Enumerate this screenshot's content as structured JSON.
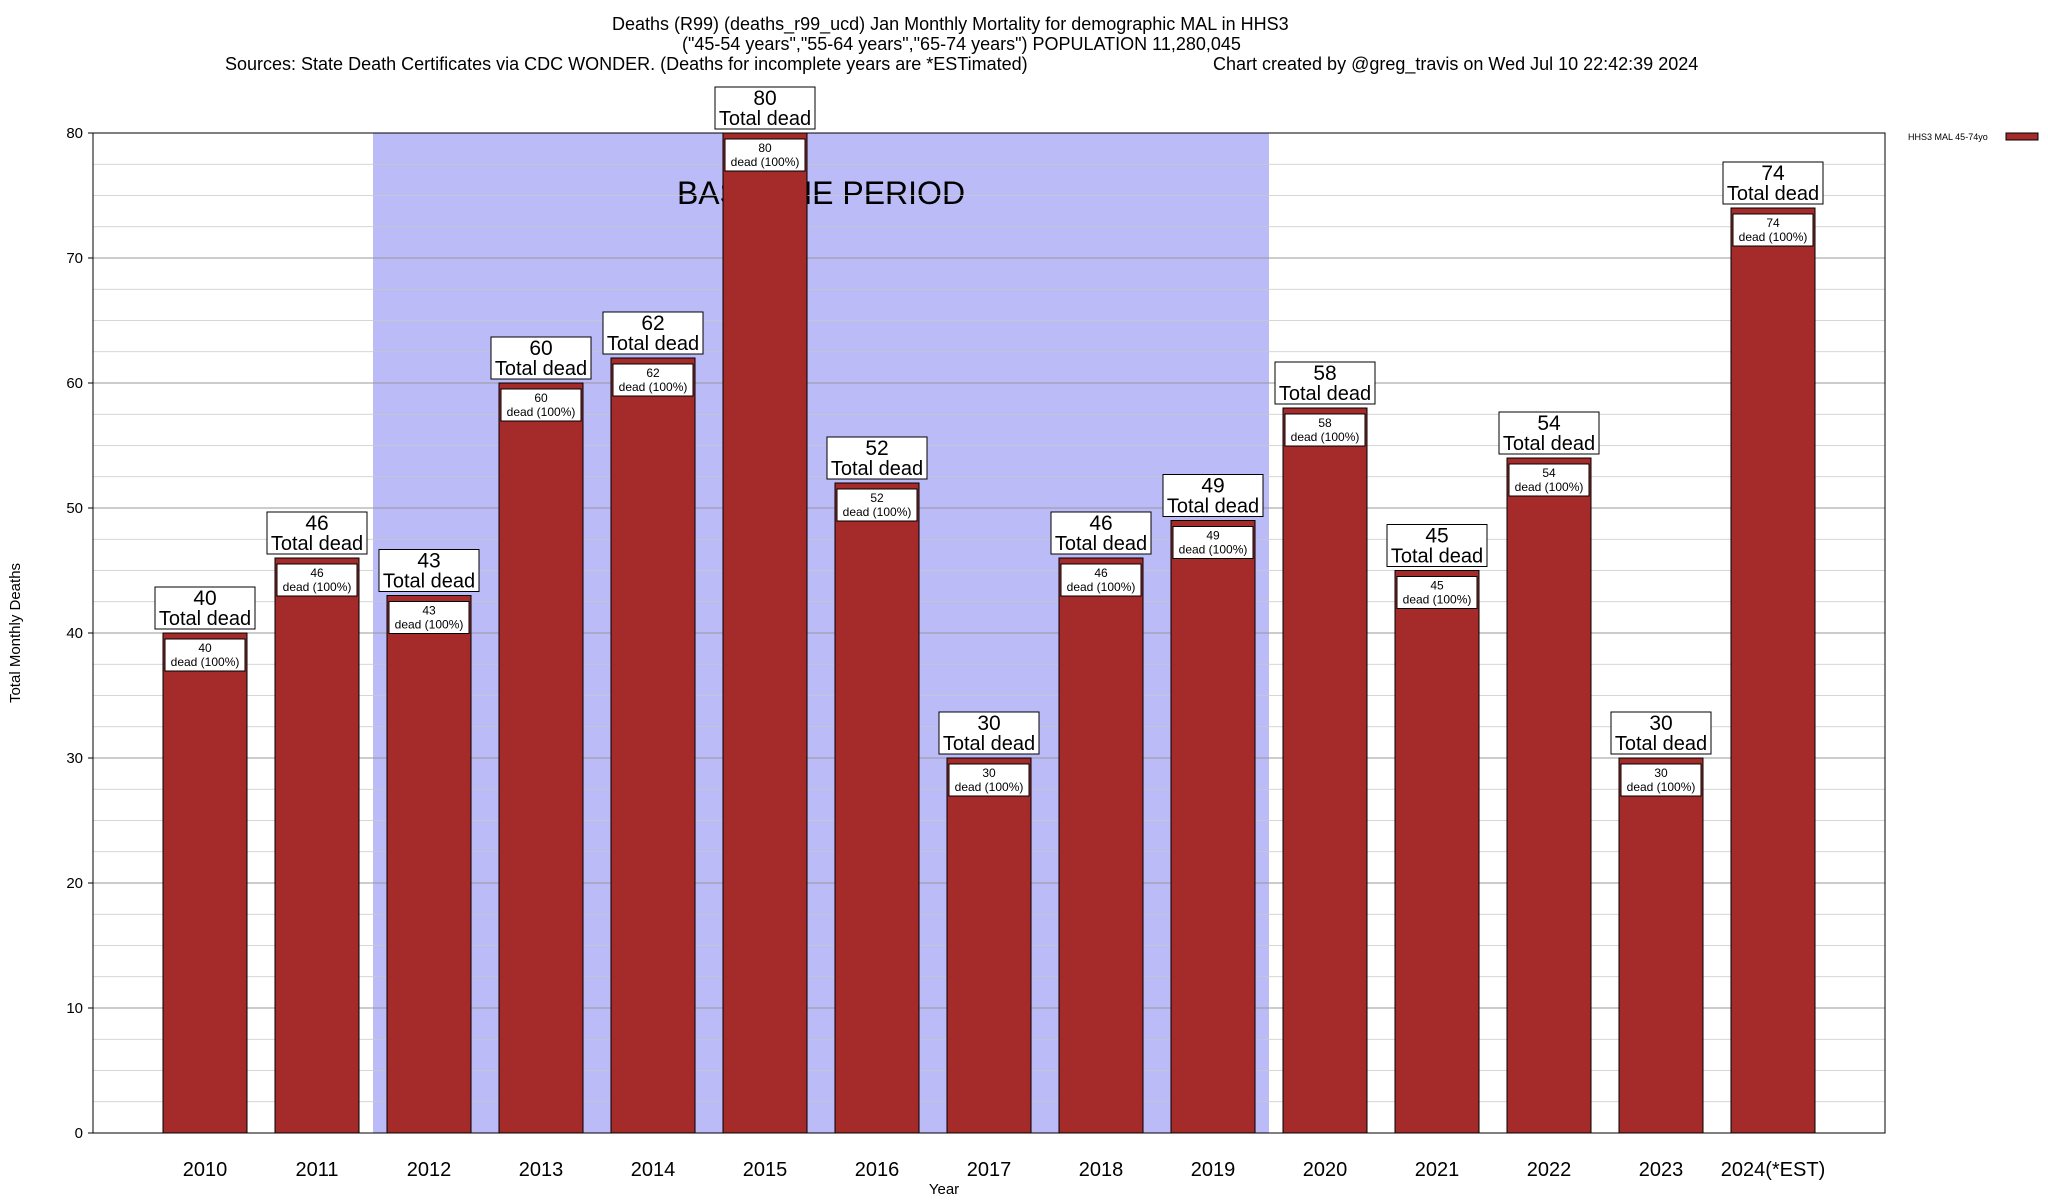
{
  "chart_data": {
    "type": "bar",
    "title_line1": "Deaths (R99) (deaths_r99_ucd) Jan Monthly Mortality for demographic MAL in HHS3",
    "title_line2": "(\"45-54 years\",\"55-64 years\",\"65-74 years\") POPULATION 11,280,045",
    "sources": "Sources: State Death Certificates via CDC WONDER. (Deaths for incomplete years are *ESTimated)",
    "credit": "Chart created by @greg_travis on Wed Jul 10 22:42:39 2024",
    "xlabel": "Year",
    "ylabel": "Total Monthly Deaths",
    "ylim": [
      0,
      80
    ],
    "yticks": [
      0,
      10,
      20,
      30,
      40,
      50,
      60,
      70,
      80
    ],
    "categories": [
      "2010",
      "2011",
      "2012",
      "2013",
      "2014",
      "2015",
      "2016",
      "2017",
      "2018",
      "2019",
      "2020",
      "2021",
      "2022",
      "2023",
      "2024(*EST)"
    ],
    "series": [
      {
        "name": "HHS3 MAL 45-74yo",
        "color": "#a52a2a",
        "values": [
          40,
          46,
          43,
          60,
          62,
          80,
          52,
          30,
          46,
          49,
          58,
          45,
          54,
          30,
          74
        ]
      }
    ],
    "label_top_suffix": "Total dead",
    "label_inner_suffix": "dead (100%)",
    "baseline_label": "BASELINE PERIOD",
    "baseline_range": [
      "2012",
      "2019"
    ],
    "baseline_color": "#bbbbf7",
    "grid": true,
    "legend_position": "top-right"
  }
}
